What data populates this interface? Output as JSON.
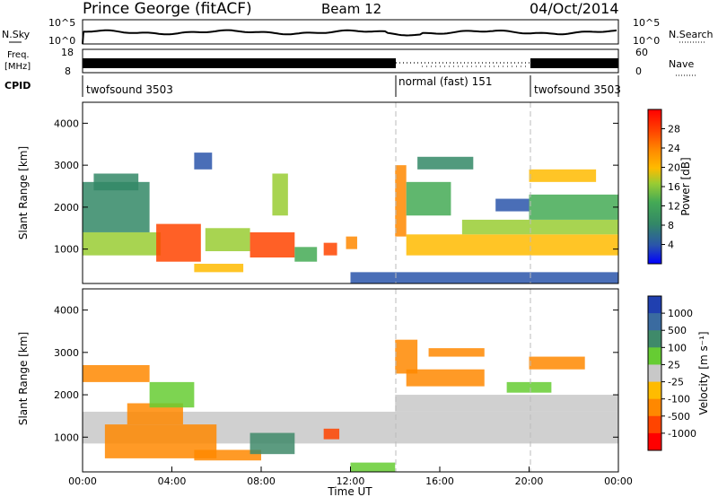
{
  "header": {
    "station": "Prince George (fitACF)",
    "beam": "Beam 12",
    "date": "04/Oct/2014"
  },
  "noise_panel": {
    "left_label": "N.Sky",
    "left_ticks": [
      "10^5",
      "10^0"
    ],
    "right_ticks": [
      "10^5",
      "10^0"
    ],
    "right_label": "N.Search"
  },
  "freq_panel": {
    "left_label_top": "Freq.",
    "left_label_bottom": "[MHz]",
    "left_ticks": [
      "18",
      "8"
    ],
    "right_ticks": [
      "60",
      "0"
    ],
    "right_label": "Nave"
  },
  "cpid_panel": {
    "label": "CPID",
    "segments": [
      {
        "name": "twofsound 3503",
        "start_hour": 0,
        "end_hour": 14
      },
      {
        "name": "normal (fast) 151",
        "start_hour": 14,
        "end_hour": 20
      },
      {
        "name": "twofsound 3503",
        "start_hour": 20,
        "end_hour": 24
      }
    ]
  },
  "power_colorbar": {
    "label": "Power [dB]",
    "ticks": [
      "28",
      "24",
      "20",
      "16",
      "12",
      "8",
      "4"
    ],
    "colors": [
      "#ff0000",
      "#ff4400",
      "#ff8800",
      "#ffbb00",
      "#99cc33",
      "#44aa55",
      "#338866",
      "#2a55aa",
      "#0000ff"
    ]
  },
  "velocity_colorbar": {
    "label": "Velocity [m s⁻¹]",
    "ticks": [
      "1000",
      "500",
      "100",
      "25",
      "-25",
      "-100",
      "-500",
      "-1000"
    ],
    "colors": [
      "#2040b0",
      "#3a6ba0",
      "#3f8a6a",
      "#66cc33",
      "#c8c8c8",
      "#ffbb00",
      "#ff8800",
      "#ff4400",
      "#ff0000"
    ]
  },
  "chart_data": [
    {
      "type": "heatmap",
      "title": "Power",
      "ylabel": "Slant Range [km]",
      "xlabel": "",
      "ylim": [
        180,
        4500
      ],
      "xlim": [
        0,
        24
      ],
      "yticks": [
        "1000",
        "2000",
        "3000",
        "4000"
      ],
      "colorbar": "Power [dB]",
      "bands": [
        {
          "h0": 0,
          "h1": 3.5,
          "r0": 850,
          "r1": 1400,
          "db": 14
        },
        {
          "h0": 0,
          "h1": 3,
          "r0": 1400,
          "r1": 2600,
          "db": 10
        },
        {
          "h0": 3.3,
          "h1": 5.3,
          "r0": 700,
          "r1": 1600,
          "db": 27
        },
        {
          "h0": 5.5,
          "h1": 7.5,
          "r0": 950,
          "r1": 1500,
          "db": 15
        },
        {
          "h0": 7.5,
          "h1": 9.5,
          "r0": 800,
          "r1": 1400,
          "db": 26
        },
        {
          "h0": 9.5,
          "h1": 10.5,
          "r0": 700,
          "r1": 1050,
          "db": 12
        },
        {
          "h0": 10.8,
          "h1": 11.4,
          "r0": 850,
          "r1": 1150,
          "db": 24
        },
        {
          "h0": 11.8,
          "h1": 12.3,
          "r0": 1000,
          "r1": 1300,
          "db": 22
        },
        {
          "h0": 5,
          "h1": 7.2,
          "r0": 450,
          "r1": 650,
          "db": 18
        },
        {
          "h0": 0.5,
          "h1": 2.5,
          "r0": 2400,
          "r1": 2800,
          "db": 8
        },
        {
          "h0": 5.0,
          "h1": 5.8,
          "r0": 2900,
          "r1": 3300,
          "db": 6
        },
        {
          "h0": 8.5,
          "h1": 9.2,
          "r0": 1800,
          "r1": 2800,
          "db": 14
        },
        {
          "h0": 14,
          "h1": 14.5,
          "r0": 1300,
          "r1": 3000,
          "db": 22
        },
        {
          "h0": 14.5,
          "h1": 16.5,
          "r0": 1800,
          "r1": 2600,
          "db": 12
        },
        {
          "h0": 15,
          "h1": 17.5,
          "r0": 2900,
          "r1": 3200,
          "db": 10
        },
        {
          "h0": 14.5,
          "h1": 24,
          "r0": 850,
          "r1": 1350,
          "db": 18
        },
        {
          "h0": 17,
          "h1": 24,
          "r0": 1350,
          "r1": 1700,
          "db": 13
        },
        {
          "h0": 20,
          "h1": 24,
          "r0": 1700,
          "r1": 2300,
          "db": 12
        },
        {
          "h0": 20,
          "h1": 23,
          "r0": 2600,
          "r1": 2900,
          "db": 18
        },
        {
          "h0": 12,
          "h1": 24,
          "r0": 180,
          "r1": 450,
          "db": 6
        },
        {
          "h0": 18.5,
          "h1": 20,
          "r0": 1900,
          "r1": 2200,
          "db": 5
        }
      ]
    },
    {
      "type": "heatmap",
      "title": "Velocity",
      "ylabel": "Slant Range [km]",
      "xlabel": "Time UT",
      "xticks": [
        "00:00",
        "04:00",
        "08:00",
        "12:00",
        "16:00",
        "20:00",
        "00:00"
      ],
      "ylim": [
        180,
        4500
      ],
      "xlim": [
        0,
        24
      ],
      "yticks": [
        "1000",
        "2000",
        "3000",
        "4000"
      ],
      "colorbar": "Velocity [m s⁻¹]",
      "bands": [
        {
          "h0": 0,
          "h1": 24,
          "r0": 850,
          "r1": 1600,
          "v": 0
        },
        {
          "h0": 1,
          "h1": 6,
          "r0": 500,
          "r1": 1300,
          "v": -300
        },
        {
          "h0": 2,
          "h1": 4.5,
          "r0": 1300,
          "r1": 1800,
          "v": -150
        },
        {
          "h0": 5,
          "h1": 8,
          "r0": 450,
          "r1": 700,
          "v": -200
        },
        {
          "h0": 7.5,
          "h1": 9.5,
          "r0": 600,
          "r1": 1100,
          "v": 300
        },
        {
          "h0": 0,
          "h1": 3,
          "r0": 2300,
          "r1": 2700,
          "v": -100
        },
        {
          "h0": 3,
          "h1": 5,
          "r0": 1700,
          "r1": 2300,
          "v": 80
        },
        {
          "h0": 14,
          "h1": 15,
          "r0": 2500,
          "r1": 3300,
          "v": -400
        },
        {
          "h0": 14.5,
          "h1": 18,
          "r0": 2200,
          "r1": 2600,
          "v": -250
        },
        {
          "h0": 15.5,
          "h1": 18,
          "r0": 2900,
          "r1": 3100,
          "v": -200
        },
        {
          "h0": 20,
          "h1": 22.5,
          "r0": 2600,
          "r1": 2900,
          "v": -200
        },
        {
          "h0": 19,
          "h1": 21,
          "r0": 2050,
          "r1": 2300,
          "v": 60
        },
        {
          "h0": 14,
          "h1": 24,
          "r0": 1600,
          "r1": 2000,
          "v": 0
        },
        {
          "h0": 12,
          "h1": 14,
          "r0": 180,
          "r1": 400,
          "v": 80
        },
        {
          "h0": 10.8,
          "h1": 11.5,
          "r0": 950,
          "r1": 1200,
          "v": -500
        }
      ]
    }
  ]
}
